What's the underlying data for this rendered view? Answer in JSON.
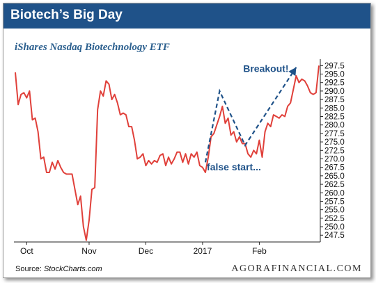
{
  "header": {
    "title": "Biotech’s Big Day"
  },
  "footer": {
    "source_label": "Source: ",
    "source_name": "StockCharts.com",
    "brand": "AGORAFINANCIAL.COM"
  },
  "colors": {
    "header_bg": "#1f5289",
    "price_line": "#e0403a",
    "annotation": "#1f5289",
    "grid": "#d9d9d9",
    "axis": "#222222"
  },
  "chart_data": {
    "type": "line",
    "title": "iShares Nasdaq Biotechnology ETF",
    "xlabel": "",
    "ylabel": "",
    "ylim": [
      245.5,
      299
    ],
    "grid": false,
    "y_ticks": [
      297.5,
      295.0,
      292.5,
      290.0,
      287.5,
      285.0,
      282.5,
      280.0,
      277.5,
      275.0,
      272.5,
      270.0,
      267.5,
      265.0,
      262.5,
      260.0,
      257.5,
      255.0,
      252.5,
      250.0,
      247.5
    ],
    "x_tick_labels": [
      {
        "label": "Oct",
        "t": 4
      },
      {
        "label": "Nov",
        "t": 26
      },
      {
        "label": "Dec",
        "t": 46
      },
      {
        "label": "2017",
        "t": 66
      },
      {
        "label": "Feb",
        "t": 86
      }
    ],
    "t_range": [
      -0.5,
      107.5
    ],
    "series": [
      {
        "values": [
          [
            0,
            295.5
          ],
          [
            1,
            286
          ],
          [
            2,
            289
          ],
          [
            3,
            289.5
          ],
          [
            4,
            288
          ],
          [
            5,
            290
          ],
          [
            6,
            281.5
          ],
          [
            7,
            282
          ],
          [
            8,
            278
          ],
          [
            9,
            270
          ],
          [
            10,
            270.5
          ],
          [
            11,
            266
          ],
          [
            12,
            266
          ],
          [
            13,
            269
          ],
          [
            14,
            267
          ],
          [
            15,
            269.5
          ],
          [
            16,
            267.5
          ],
          [
            17,
            266
          ],
          [
            18,
            265.5
          ],
          [
            19,
            265.5
          ],
          [
            20,
            265.5
          ],
          [
            21,
            261
          ],
          [
            22,
            256.5
          ],
          [
            23,
            259
          ],
          [
            24,
            250
          ],
          [
            25,
            246
          ],
          [
            26,
            252
          ],
          [
            27,
            261
          ],
          [
            28,
            261.5
          ],
          [
            29,
            284.5
          ],
          [
            30,
            290
          ],
          [
            31,
            288.5
          ],
          [
            32,
            293
          ],
          [
            33,
            292
          ],
          [
            34,
            287.5
          ],
          [
            35,
            289
          ],
          [
            36,
            286.5
          ],
          [
            37,
            283
          ],
          [
            38,
            283.5
          ],
          [
            39,
            283
          ],
          [
            40,
            279.5
          ],
          [
            41,
            279.5
          ],
          [
            42,
            275.5
          ],
          [
            43,
            270
          ],
          [
            44,
            270.5
          ],
          [
            45,
            271.5
          ],
          [
            46,
            268
          ],
          [
            47,
            269.5
          ],
          [
            48,
            268.5
          ],
          [
            49,
            269.5
          ],
          [
            50,
            269
          ],
          [
            51,
            271
          ],
          [
            52,
            271.5
          ],
          [
            53,
            268
          ],
          [
            54,
            270.5
          ],
          [
            55,
            268.5
          ],
          [
            56,
            270
          ],
          [
            57,
            272
          ],
          [
            58,
            272
          ],
          [
            59,
            269
          ],
          [
            60,
            271.5
          ],
          [
            61,
            268.5
          ],
          [
            62,
            271.5
          ],
          [
            63,
            270.5
          ],
          [
            64,
            272
          ],
          [
            65,
            268
          ],
          [
            66,
            267.5
          ],
          [
            67,
            266
          ],
          [
            68,
            270.5
          ],
          [
            69,
            276.5
          ],
          [
            70,
            277.5
          ],
          [
            71,
            280
          ],
          [
            72,
            282.5
          ],
          [
            73,
            285.5
          ],
          [
            74,
            280.5
          ],
          [
            75,
            282
          ],
          [
            76,
            277
          ],
          [
            77,
            278
          ],
          [
            78,
            275
          ],
          [
            79,
            276.5
          ],
          [
            80,
            274.5
          ],
          [
            81,
            274.5
          ],
          [
            82,
            271.5
          ],
          [
            83,
            270.5
          ],
          [
            84,
            272.5
          ],
          [
            85,
            271.5
          ],
          [
            86,
            275.5
          ],
          [
            87,
            270.5
          ],
          [
            88,
            278
          ],
          [
            89,
            280.5
          ],
          [
            90,
            279.5
          ],
          [
            91,
            283
          ],
          [
            92,
            282.5
          ],
          [
            93,
            282
          ],
          [
            94,
            283
          ],
          [
            95,
            282.5
          ],
          [
            96,
            285.5
          ],
          [
            97,
            286.5
          ],
          [
            98,
            290.5
          ],
          [
            99,
            294.5
          ],
          [
            100,
            292.5
          ],
          [
            101,
            293.5
          ],
          [
            102,
            293
          ],
          [
            103,
            291.5
          ],
          [
            104,
            289.5
          ],
          [
            105,
            289
          ],
          [
            106,
            289.5
          ],
          [
            107,
            297.5
          ]
        ]
      }
    ],
    "annotations": [
      {
        "text": "false start...",
        "path": [
          [
            67,
            269
          ],
          [
            72,
            290
          ],
          [
            81,
            274
          ],
          [
            99,
            297
          ]
        ]
      },
      {
        "text": "Breakout!"
      }
    ]
  }
}
